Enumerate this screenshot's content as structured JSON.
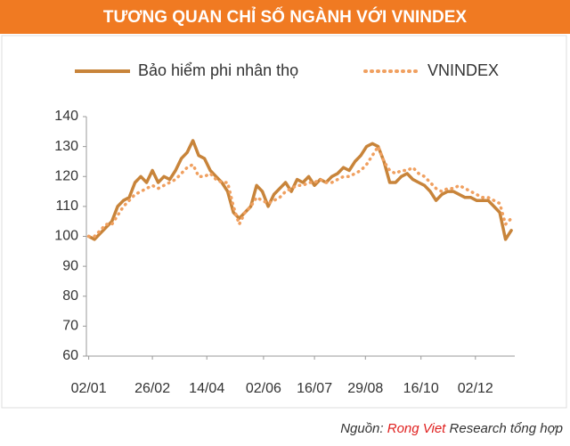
{
  "chart_data": {
    "type": "line",
    "title": "TƯƠNG QUAN CHỈ SỐ NGÀNH VỚI VNINDEX",
    "source": {
      "prefix": "Nguồn:",
      "highlight": "Rong Viet",
      "suffix": "Research tổng hợp"
    },
    "x": [
      2,
      7,
      12,
      17,
      22,
      27,
      32,
      37,
      42,
      47,
      52,
      57,
      62,
      67,
      72,
      77,
      82,
      87,
      92,
      97,
      102,
      107,
      112,
      117,
      122,
      127,
      132,
      137,
      142,
      147,
      152,
      157,
      162,
      167,
      172,
      177,
      182,
      187,
      192,
      197,
      202,
      207,
      212,
      217,
      222,
      227,
      232,
      237,
      242,
      247,
      252,
      257,
      262,
      267,
      272,
      277,
      282,
      287,
      292,
      297,
      302,
      307,
      312,
      317,
      322,
      327,
      332,
      337,
      342,
      347,
      352,
      357,
      362,
      367
    ],
    "series": [
      {
        "name": "Bảo hiểm phi nhân thọ",
        "color": "#c8843a",
        "style": "solid",
        "values": [
          100,
          99,
          101,
          103,
          105,
          110,
          112,
          113,
          118,
          120,
          118,
          122,
          118,
          120,
          119,
          122,
          126,
          128,
          132,
          127,
          126,
          122,
          120,
          118,
          115,
          108,
          106,
          108,
          110,
          117,
          115,
          110,
          114,
          116,
          118,
          115,
          119,
          118,
          120,
          117,
          119,
          118,
          120,
          121,
          123,
          122,
          125,
          127,
          130,
          131,
          130,
          125,
          118,
          118,
          120,
          121,
          119,
          118,
          117,
          115,
          112,
          114,
          115,
          115,
          114,
          113,
          113,
          112,
          112,
          112,
          110,
          108,
          99,
          102
        ]
      },
      {
        "name": "VNINDEX",
        "color": "#f0a060",
        "style": "dotted",
        "values": [
          100,
          100,
          102,
          104,
          104,
          107,
          110,
          112,
          114,
          115,
          116,
          117,
          116,
          117,
          118,
          119,
          121,
          123,
          124,
          120,
          120,
          121,
          119,
          118,
          118,
          110,
          104,
          108,
          110,
          113,
          112,
          111,
          112,
          113,
          115,
          116,
          117,
          117,
          118,
          118,
          119,
          118,
          118,
          119,
          120,
          120,
          121,
          122,
          124,
          127,
          130,
          125,
          122,
          121,
          122,
          122,
          123,
          121,
          120,
          118,
          116,
          115,
          116,
          116,
          117,
          116,
          115,
          114,
          113,
          113,
          112,
          111,
          104,
          106
        ]
      }
    ],
    "xlim": [
      0,
      370
    ],
    "xticks": [
      {
        "value": 2,
        "label": "02/01"
      },
      {
        "value": 57,
        "label": "26/02"
      },
      {
        "value": 104,
        "label": "14/04"
      },
      {
        "value": 153,
        "label": "02/06"
      },
      {
        "value": 197,
        "label": "16/07"
      },
      {
        "value": 241,
        "label": "29/08"
      },
      {
        "value": 289,
        "label": "16/10"
      },
      {
        "value": 336,
        "label": "02/12"
      }
    ],
    "ylim": [
      60,
      140
    ],
    "yticks": [
      60,
      70,
      80,
      90,
      100,
      110,
      120,
      130,
      140
    ]
  }
}
